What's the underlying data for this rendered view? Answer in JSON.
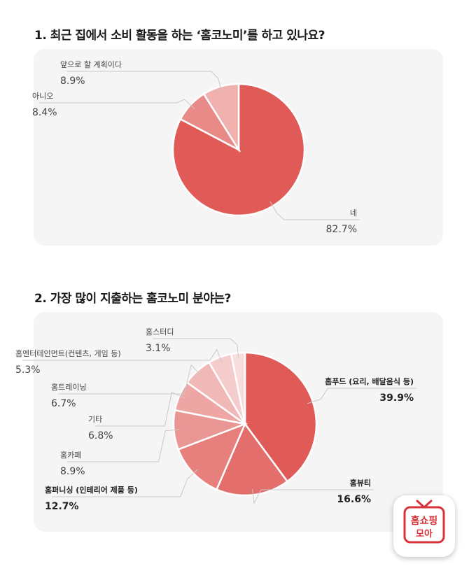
{
  "questions": [
    {
      "title": "1. 최근 집에서 소비 활동을 하는 ‘홈코노미’를 하고 있나요?"
    },
    {
      "title": "2. 가장 많이 지출하는 홈코노미 분야는?"
    }
  ],
  "chart_data": [
    {
      "type": "pie",
      "title": "1. 최근 집에서 소비 활동을 하는 ‘홈코노미’를 하고 있나요?",
      "start": "12 o'clock, clockwise",
      "slices": [
        {
          "label": "네",
          "value": 82.7,
          "value_label": "82.7%",
          "color": "#e05a58"
        },
        {
          "label": "아니오",
          "value": 8.4,
          "value_label": "8.4%",
          "color": "#e88b88"
        },
        {
          "label": "앞으로 할 계획이다",
          "value": 8.9,
          "value_label": "8.9%",
          "color": "#efb0ae"
        }
      ]
    },
    {
      "type": "pie",
      "title": "2. 가장 많이 지출하는 홈코노미 분야는?",
      "start": "12 o'clock, clockwise",
      "slices": [
        {
          "label": "홈푸드 (요리, 배달음식 등)",
          "value": 39.9,
          "value_label": "39.9%",
          "color": "#e05a58"
        },
        {
          "label": "홈뷰티",
          "value": 16.6,
          "value_label": "16.6%",
          "color": "#e46e6c"
        },
        {
          "label": "홈퍼니싱 (인테리어 제품 등)",
          "value": 12.7,
          "value_label": "12.7%",
          "color": "#e77f7d"
        },
        {
          "label": "홈카페",
          "value": 8.9,
          "value_label": "8.9%",
          "color": "#ea9694"
        },
        {
          "label": "기타",
          "value": 6.8,
          "value_label": "6.8%",
          "color": "#eda6a4"
        },
        {
          "label": "홈트레이닝",
          "value": 6.7,
          "value_label": "6.7%",
          "color": "#f0b8b6"
        },
        {
          "label": "홈엔터테인먼트(컨텐츠, 게임 등)",
          "value": 5.3,
          "value_label": "5.3%",
          "color": "#f4cccb"
        },
        {
          "label": "홈스터디",
          "value": 3.1,
          "value_label": "3.1%",
          "color": "#f7dddc"
        }
      ]
    }
  ],
  "logo": {
    "line1": "홈쇼핑",
    "line2": "모아",
    "color": "#d8333a"
  }
}
